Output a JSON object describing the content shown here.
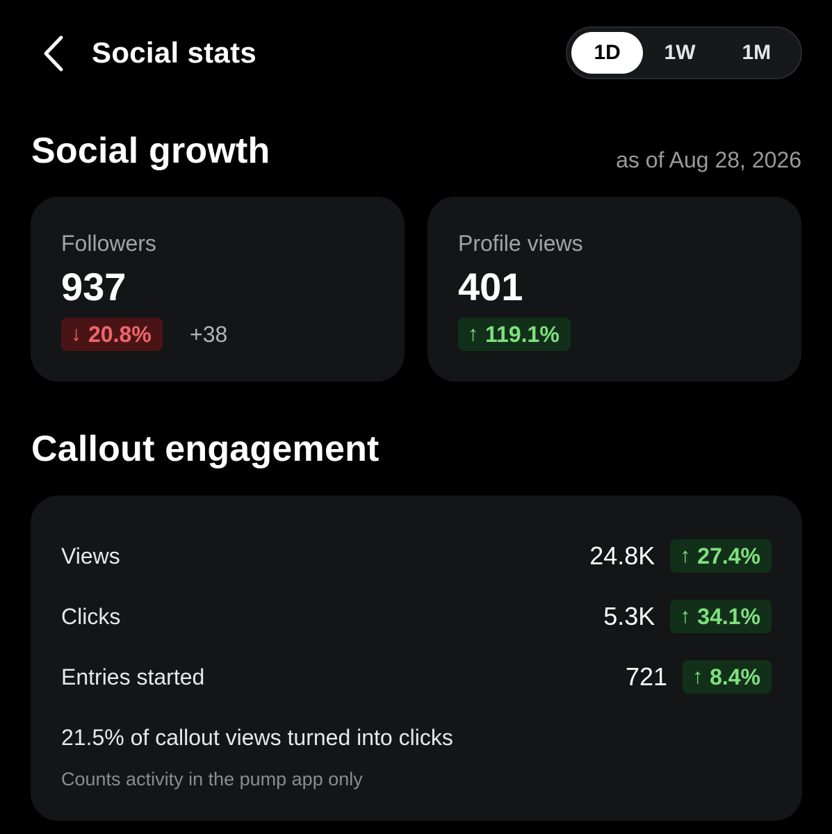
{
  "header": {
    "title": "Social stats",
    "back_icon": "chevron-left-icon",
    "range_options": [
      "1D",
      "1W",
      "1M"
    ],
    "selected_range": "1D"
  },
  "growth": {
    "title": "Social growth",
    "as_of": "as of Aug 28, 2026",
    "followers": {
      "label": "Followers",
      "value": "937",
      "change_pct": "20.8%",
      "change_arrow": "↓",
      "change_direction": "down",
      "change_abs": "+38"
    },
    "profile_views": {
      "label": "Profile views",
      "value": "401",
      "change_pct": "119.1%",
      "change_arrow": "↑",
      "change_direction": "up"
    }
  },
  "engagement": {
    "title": "Callout engagement",
    "metrics": [
      {
        "label": "Views",
        "value": "24.8K",
        "change_pct": "27.4%",
        "change_arrow": "↑",
        "change_direction": "up"
      },
      {
        "label": "Clicks",
        "value": "5.3K",
        "change_pct": "34.1%",
        "change_arrow": "↑",
        "change_direction": "up"
      },
      {
        "label": "Entries started",
        "value": "721",
        "change_pct": "8.4%",
        "change_arrow": "↑",
        "change_direction": "up"
      }
    ],
    "summary": "21.5% of callout views turned into clicks",
    "footnote": "Counts activity in the pump app only"
  },
  "colors": {
    "background": "#000000",
    "card": "#141517",
    "positive_text": "#7fe07f",
    "positive_bg": "#123019",
    "negative_text": "#f0666b",
    "negative_bg": "#4a1416"
  }
}
